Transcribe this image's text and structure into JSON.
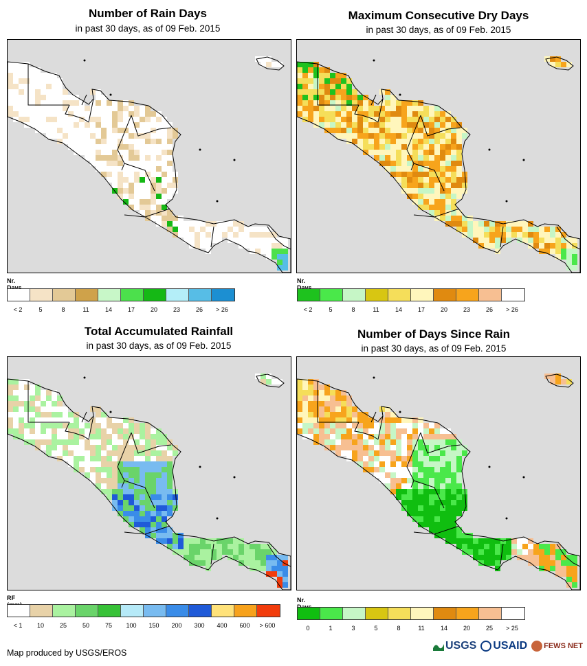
{
  "panels": [
    {
      "title": "Number of Rain Days",
      "subtitle": "in past 30 days, as of 09 Feb. 2015",
      "legend_title": "Nr. Days",
      "colors": [
        "#ffffff",
        "#f5e3c6",
        "#e3c996",
        "#cfa24a",
        "#c8f7c8",
        "#4ce04c",
        "#15b815",
        "#b4eef8",
        "#57bde6",
        "#1c8fd2"
      ],
      "ticks": [
        "< 2",
        "5",
        "8",
        "11",
        "14",
        "17",
        "20",
        "23",
        "26",
        "> 26"
      ]
    },
    {
      "title": "Maximum Consecutive Dry Days",
      "subtitle": "in past 30 days, as of 09 Feb. 2015",
      "legend_title": "Nr. Days",
      "colors": [
        "#1ec21e",
        "#4ae84a",
        "#c6f6c6",
        "#d8c612",
        "#f5de5a",
        "#fff6bc",
        "#e08a10",
        "#f7a41c",
        "#f7bf92",
        "#ffffff"
      ],
      "ticks": [
        "< 2",
        "5",
        "8",
        "11",
        "14",
        "17",
        "20",
        "23",
        "26",
        "> 26"
      ]
    },
    {
      "title": "Total Accumulated Rainfall",
      "subtitle": "in past 30 days, as of 09 Feb. 2015",
      "legend_title": "RF (mm)",
      "colors": [
        "#ffffff",
        "#e8d2a8",
        "#aaf2a0",
        "#6ad46a",
        "#38c238",
        "#b6eaf8",
        "#78bbf0",
        "#3a8ce8",
        "#1f5ad8",
        "#ffe27a",
        "#f7a21c",
        "#f23c0c"
      ],
      "ticks": [
        "< 1",
        "10",
        "25",
        "50",
        "75",
        "100",
        "150",
        "200",
        "300",
        "400",
        "600",
        "> 600"
      ]
    },
    {
      "title": "Number of Days Since Rain",
      "subtitle": "in past 30 days, as of 09 Feb. 2015",
      "legend_title": "Nr. Days",
      "colors": [
        "#10be10",
        "#4ae84a",
        "#c6f6c6",
        "#d8c612",
        "#f5de5a",
        "#fff6bc",
        "#e08a10",
        "#f7a41c",
        "#f7bf92",
        "#ffffff"
      ],
      "ticks": [
        "0",
        "1",
        "3",
        "5",
        "8",
        "11",
        "14",
        "20",
        "25",
        "> 25"
      ]
    }
  ],
  "credit": "Map produced by USGS/EROS",
  "logos": {
    "usgs": "USGS",
    "usaid": "USAID",
    "fews": "FEWS NET"
  }
}
